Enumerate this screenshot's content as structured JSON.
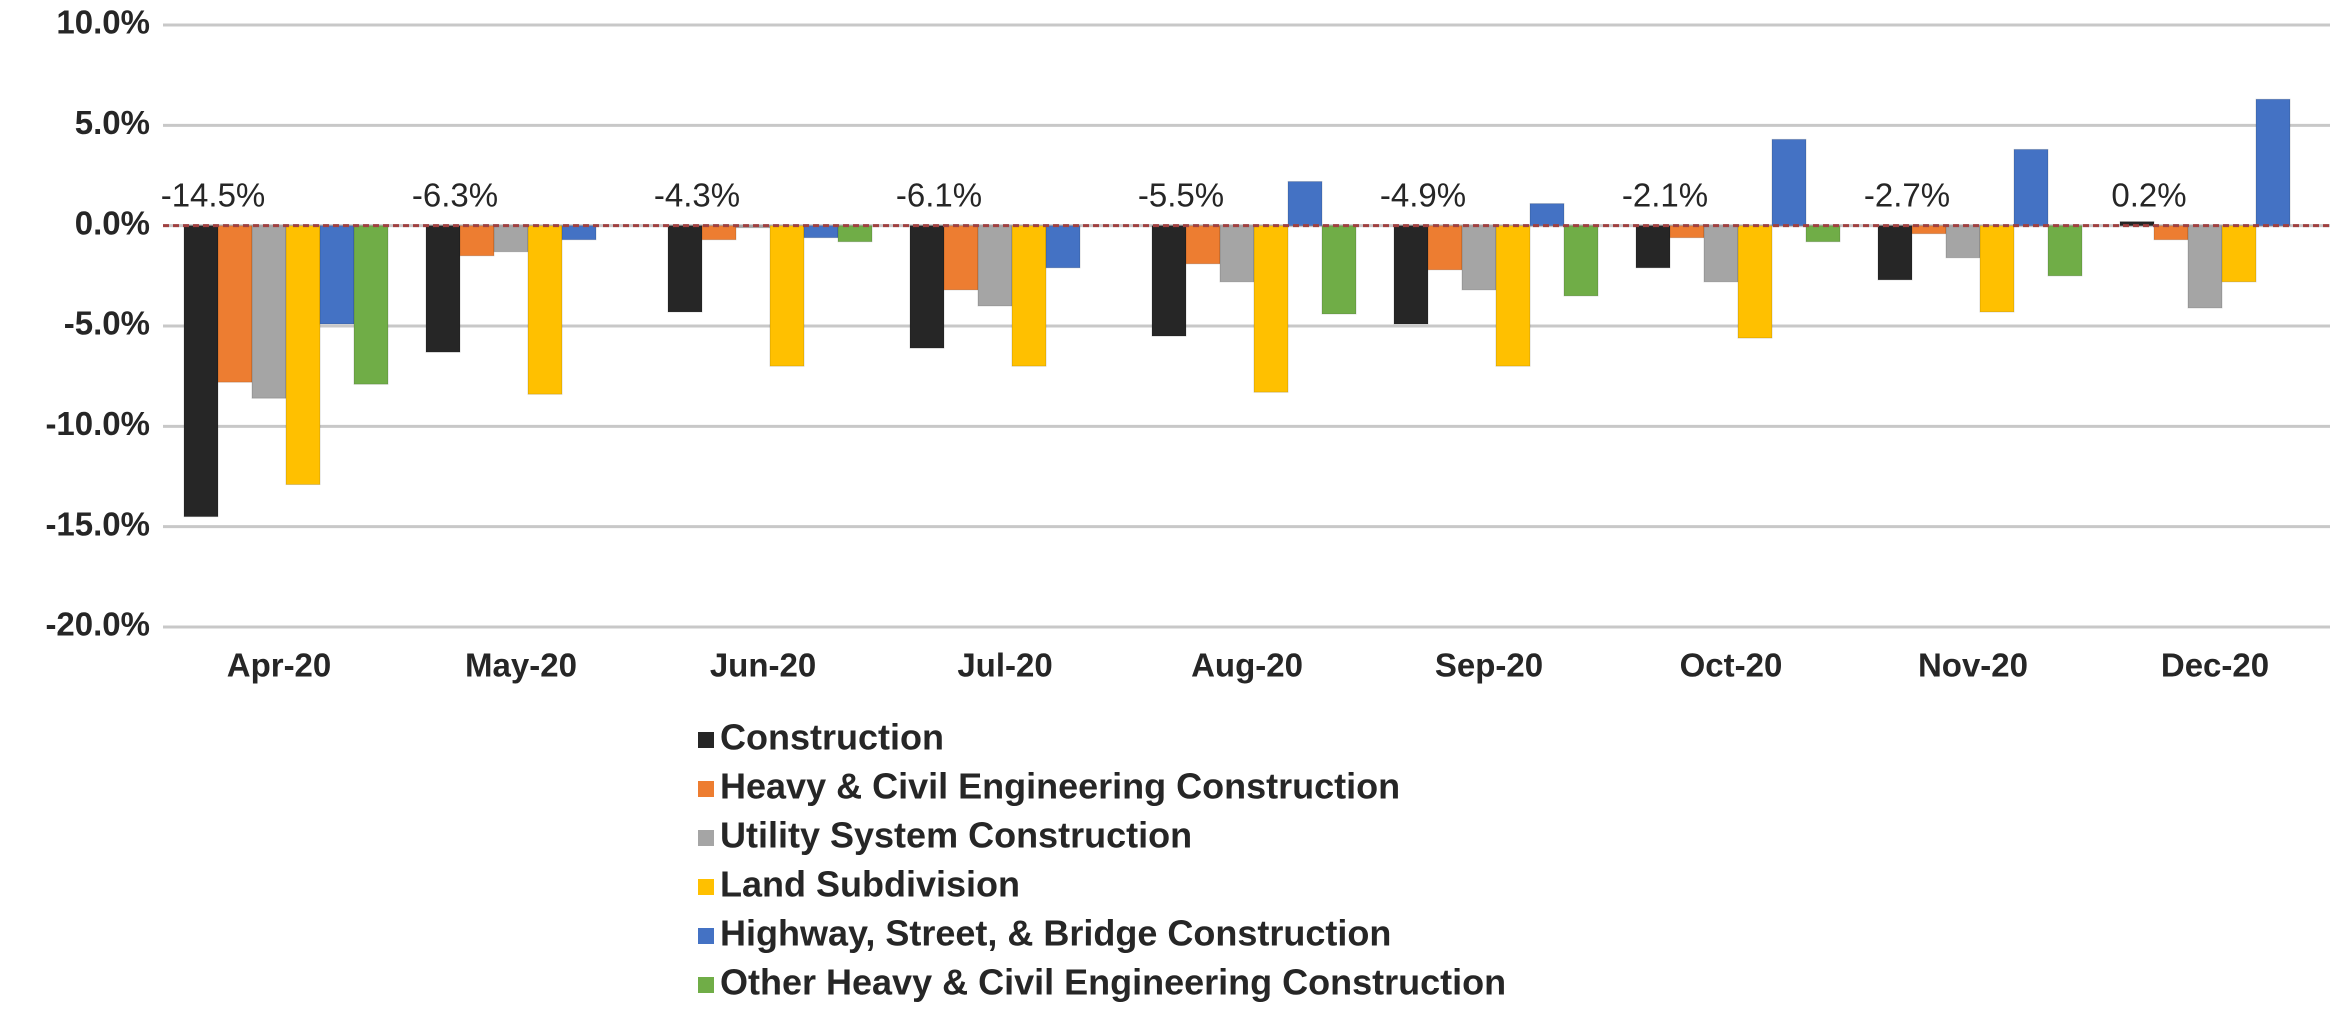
{
  "chart_data": {
    "type": "bar",
    "categories": [
      "Apr-20",
      "May-20",
      "Jun-20",
      "Jul-20",
      "Aug-20",
      "Sep-20",
      "Oct-20",
      "Nov-20",
      "Dec-20"
    ],
    "series": [
      {
        "name": "Construction",
        "color": "#262626",
        "values": [
          -14.5,
          -6.3,
          -4.3,
          -6.1,
          -5.5,
          -4.9,
          -2.1,
          -2.7,
          0.2
        ],
        "value_labels": [
          "-14.5%",
          "-6.3%",
          "-4.3%",
          "-6.1%",
          "-5.5%",
          "-4.9%",
          "-2.1%",
          "-2.7%",
          "0.2%"
        ]
      },
      {
        "name": "Heavy & Civil Engineering Construction",
        "color": "#ed7d31",
        "values": [
          -7.8,
          -1.5,
          -0.7,
          -3.2,
          -1.9,
          -2.2,
          -0.6,
          -0.4,
          -0.7
        ]
      },
      {
        "name": "Utility System Construction",
        "color": "#a5a5a5",
        "values": [
          -8.6,
          -1.3,
          -0.1,
          -4.0,
          -2.8,
          -3.2,
          -2.8,
          -1.6,
          -4.1
        ]
      },
      {
        "name": "Land Subdivision",
        "color": "#ffc000",
        "values": [
          -12.9,
          -8.4,
          -7.0,
          -7.0,
          -8.3,
          -7.0,
          -5.6,
          -4.3,
          -2.8
        ]
      },
      {
        "name": "Highway, Street, & Bridge Construction",
        "color": "#4472c4",
        "values": [
          -4.9,
          -0.7,
          -0.6,
          -2.1,
          2.2,
          1.1,
          4.3,
          3.8,
          6.3
        ]
      },
      {
        "name": "Other Heavy & Civil Engineering Construction",
        "color": "#70ad47",
        "values": [
          -7.9,
          0,
          -0.8,
          0,
          -4.4,
          -3.5,
          -0.8,
          -2.5,
          null
        ]
      }
    ],
    "ylim": [
      -20,
      10
    ],
    "yticks": [
      {
        "value": -20,
        "label": "-20.0%"
      },
      {
        "value": -15,
        "label": "-15.0%"
      },
      {
        "value": -10,
        "label": "-10.0%"
      },
      {
        "value": -5,
        "label": "-5.0%"
      },
      {
        "value": 0,
        "label": "0.0%"
      },
      {
        "value": 5,
        "label": "5.0%"
      },
      {
        "value": 10,
        "label": "10.0%"
      }
    ],
    "grid": true
  }
}
